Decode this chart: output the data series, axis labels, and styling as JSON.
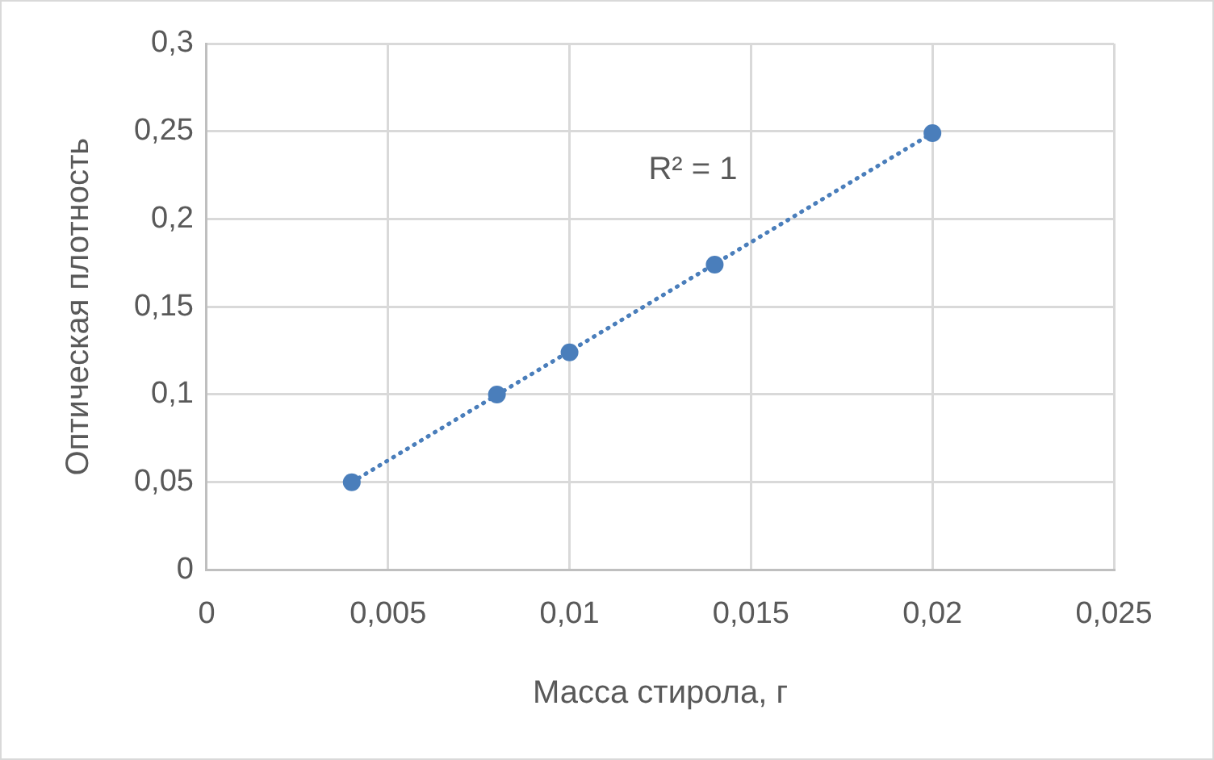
{
  "chart_data": {
    "type": "scatter",
    "x": [
      0.004,
      0.008,
      0.01,
      0.014,
      0.02
    ],
    "series": [
      {
        "type": "scatter",
        "color": "#4a7ebb",
        "marker": "circle",
        "values": [
          0.05,
          0.1,
          0.124,
          0.174,
          0.249
        ]
      },
      {
        "type": "line",
        "color": "#4a7ebb",
        "marker": "none",
        "line_style": "dotted",
        "x": [
          0.004,
          0.02
        ],
        "values": [
          0.05,
          0.249
        ]
      }
    ],
    "xlabel": "Масса стирола, г",
    "ylabel": "Оптическая плотность",
    "xlim": [
      0,
      0.025
    ],
    "xticks": [
      0,
      {
        "value": 0.005,
        "label": "0,005"
      },
      {
        "value": 0.01,
        "label": "0,01"
      },
      {
        "value": 0.015,
        "label": "0,015"
      },
      {
        "value": 0.02,
        "label": "0,02"
      },
      {
        "value": 0.025,
        "label": "0,025"
      }
    ],
    "ylim": [
      0,
      0.3
    ],
    "yticks": [
      0,
      {
        "value": 0.05,
        "label": "0,05"
      },
      {
        "value": 0.1,
        "label": "0,1"
      },
      {
        "value": 0.15,
        "label": "0,15"
      },
      {
        "value": 0.2,
        "label": "0,2"
      },
      {
        "value": 0.25,
        "label": "0,25"
      },
      {
        "value": 0.3,
        "label": "0,3"
      }
    ],
    "annotations": [
      "R² = 1"
    ],
    "grid": true
  }
}
